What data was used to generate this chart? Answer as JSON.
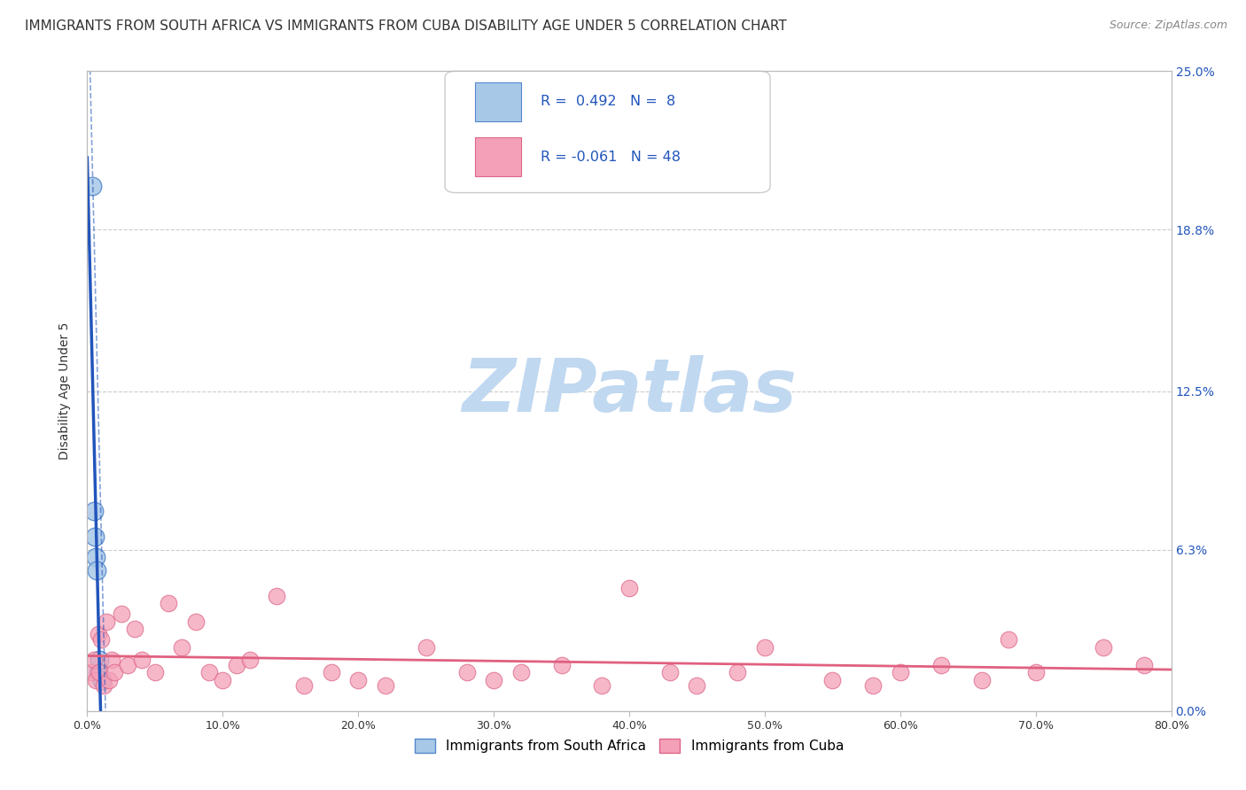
{
  "title": "IMMIGRANTS FROM SOUTH AFRICA VS IMMIGRANTS FROM CUBA DISABILITY AGE UNDER 5 CORRELATION CHART",
  "source": "Source: ZipAtlas.com",
  "ylabel": "Disability Age Under 5",
  "xlim": [
    0.0,
    80.0
  ],
  "ylim": [
    0.0,
    25.0
  ],
  "xticks": [
    0.0,
    10.0,
    20.0,
    30.0,
    40.0,
    50.0,
    60.0,
    70.0,
    80.0
  ],
  "xtick_labels": [
    "0.0%",
    "10.0%",
    "20.0%",
    "30.0%",
    "40.0%",
    "50.0%",
    "60.0%",
    "70.0%",
    "80.0%"
  ],
  "yticks": [
    0.0,
    6.3,
    12.5,
    18.8,
    25.0
  ],
  "ytick_labels": [
    "0.0%",
    "6.3%",
    "12.5%",
    "18.8%",
    "25.0%"
  ],
  "south_africa_color": "#a8c8e8",
  "cuba_color": "#f4a0b8",
  "south_africa_edge": "#5588cc",
  "cuba_edge": "#dd6688",
  "regression_blue": "#2255bb",
  "regression_pink": "#e06080",
  "R_south_africa": 0.492,
  "N_south_africa": 8,
  "R_cuba": -0.061,
  "N_cuba": 48,
  "south_africa_x": [
    0.35,
    0.5,
    0.55,
    0.65,
    0.7,
    0.8,
    0.9,
    1.1
  ],
  "south_africa_y": [
    20.5,
    7.8,
    6.8,
    6.0,
    5.5,
    1.5,
    2.0,
    1.2
  ],
  "cuba_x": [
    0.3,
    0.5,
    0.6,
    0.8,
    0.9,
    1.0,
    1.2,
    1.4,
    1.6,
    1.8,
    2.0,
    2.5,
    3.0,
    3.5,
    4.0,
    5.0,
    6.0,
    7.0,
    8.0,
    9.0,
    10.0,
    11.0,
    12.0,
    14.0,
    16.0,
    18.0,
    20.0,
    22.0,
    25.0,
    28.0,
    30.0,
    32.0,
    35.0,
    38.0,
    40.0,
    43.0,
    45.0,
    48.0,
    50.0,
    55.0,
    58.0,
    60.0,
    63.0,
    66.0,
    68.0,
    70.0,
    75.0,
    78.0
  ],
  "cuba_y": [
    1.5,
    2.0,
    1.2,
    3.0,
    1.5,
    2.8,
    1.0,
    3.5,
    1.2,
    2.0,
    1.5,
    3.8,
    1.8,
    3.2,
    2.0,
    1.5,
    4.2,
    2.5,
    3.5,
    1.5,
    1.2,
    1.8,
    2.0,
    4.5,
    1.0,
    1.5,
    1.2,
    1.0,
    2.5,
    1.5,
    1.2,
    1.5,
    1.8,
    1.0,
    4.8,
    1.5,
    1.0,
    1.5,
    2.5,
    1.2,
    1.0,
    1.5,
    1.8,
    1.2,
    2.8,
    1.5,
    2.5,
    1.8
  ],
  "background_color": "#ffffff",
  "grid_color": "#cccccc",
  "watermark_text": "ZIPatlas",
  "watermark_color": "#c0d8f0",
  "legend_label_sa": "Immigrants from South Africa",
  "legend_label_cuba": "Immigrants from Cuba"
}
